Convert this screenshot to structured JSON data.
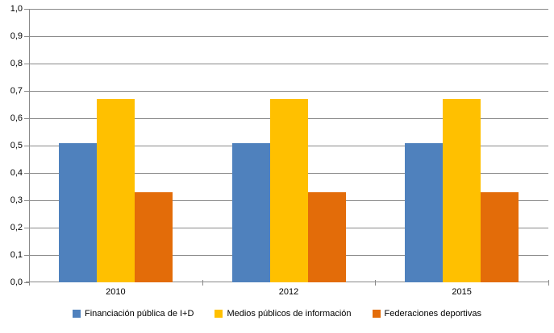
{
  "chart_data": {
    "type": "bar",
    "title": "",
    "categories": [
      "2010",
      "2012",
      "2015"
    ],
    "series": [
      {
        "name": "Financiación pública de I+D",
        "color": "#4F81BD",
        "values": [
          0.51,
          0.51,
          0.51
        ]
      },
      {
        "name": "Medios públicos de información",
        "color": "#FFC000",
        "values": [
          0.67,
          0.67,
          0.67
        ]
      },
      {
        "name": "Federaciones deportivas",
        "color": "#E36C09",
        "values": [
          0.33,
          0.33,
          0.33
        ]
      }
    ],
    "xlabel": "",
    "ylabel": "",
    "ylim": [
      0,
      1
    ],
    "ytick_step": 0.1,
    "ytick_labels": [
      "0,0",
      "0,1",
      "0,2",
      "0,3",
      "0,4",
      "0,5",
      "0,6",
      "0,7",
      "0,8",
      "0,9",
      "1,0"
    ],
    "grid": true,
    "legend_position": "bottom",
    "gridline_color": "#898989",
    "axis_color": "#898989",
    "text_color": "#000000"
  }
}
